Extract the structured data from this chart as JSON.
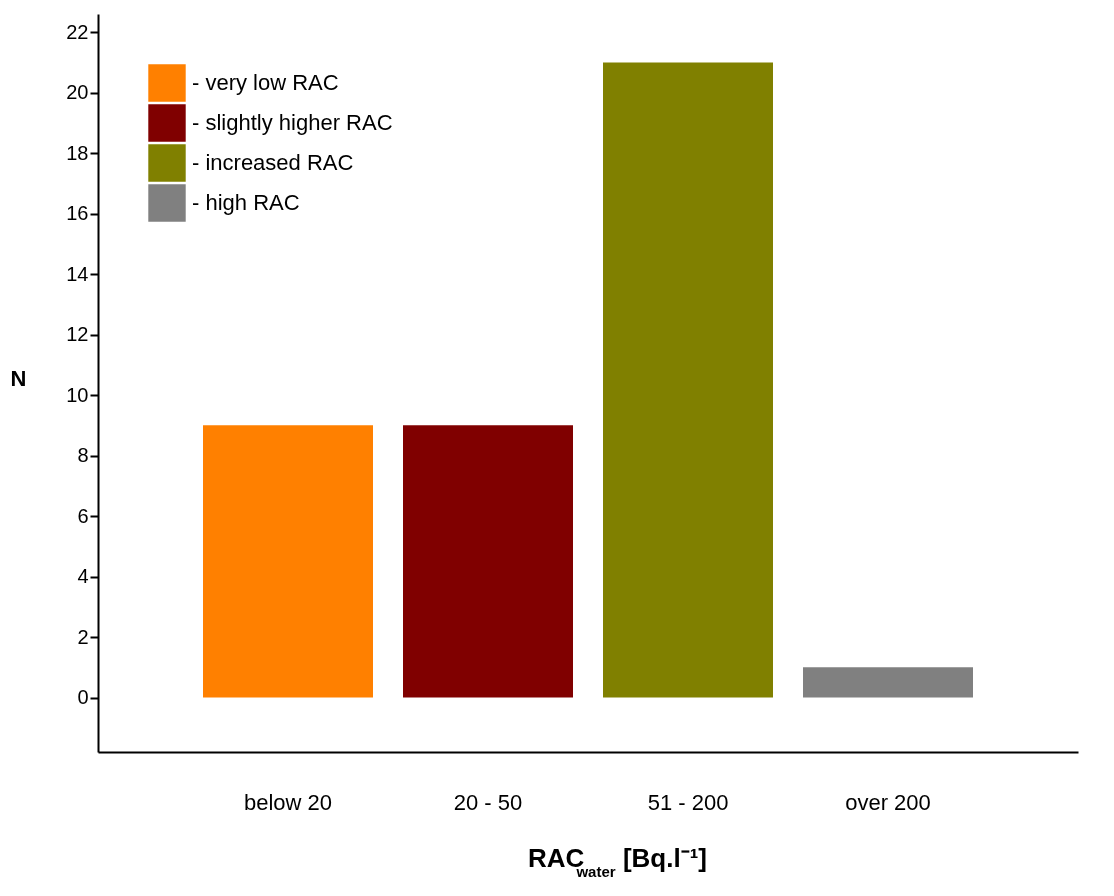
{
  "chart_data": {
    "type": "bar",
    "categories": [
      "below 20",
      "20 - 50",
      "51 - 200",
      "over 200"
    ],
    "series": [
      {
        "name": "- very low RAC",
        "color": "#ff8000",
        "values": [
          9,
          null,
          null,
          null
        ]
      },
      {
        "name": "- slightly higher RAC",
        "color": "#800000",
        "values": [
          null,
          9,
          null,
          null
        ]
      },
      {
        "name": "- increased RAC",
        "color": "#808000",
        "values": [
          null,
          null,
          21,
          null
        ]
      },
      {
        "name": "- high RAC",
        "color": "#808080",
        "values": [
          null,
          null,
          null,
          1
        ]
      }
    ],
    "xlabel": "RAC$_{water}$ [Bq.l⁻¹]",
    "ylabel": "N",
    "ylim": [
      -1.8,
      22.6
    ],
    "yticks": [
      0,
      2,
      4,
      6,
      8,
      10,
      12,
      14,
      16,
      18,
      20,
      22
    ],
    "grid": false,
    "legend": "top left"
  }
}
